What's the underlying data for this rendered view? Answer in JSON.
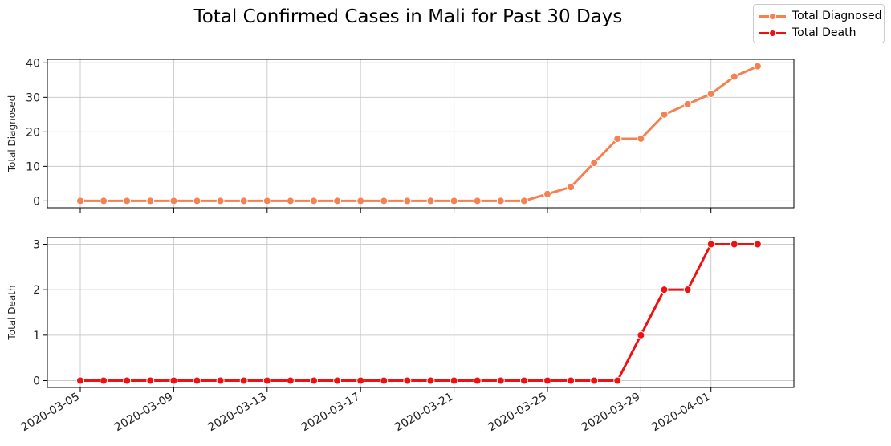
{
  "title": "Total Confirmed Cases in Mali for Past 30 Days",
  "legend": {
    "items": [
      {
        "label": "Total Diagnosed",
        "color": "#f4814f"
      },
      {
        "label": "Total Death",
        "color": "#ee1111"
      }
    ]
  },
  "chart_data": [
    {
      "type": "line",
      "ylabel": "Total Diagnosed",
      "xlabel": "",
      "color": "#f4814f",
      "ylim": [
        -2,
        41
      ],
      "yticks": [
        0,
        10,
        20,
        30,
        40
      ],
      "grid": true,
      "x": [
        "2020-03-05",
        "2020-03-06",
        "2020-03-07",
        "2020-03-08",
        "2020-03-09",
        "2020-03-10",
        "2020-03-11",
        "2020-03-12",
        "2020-03-13",
        "2020-03-14",
        "2020-03-15",
        "2020-03-16",
        "2020-03-17",
        "2020-03-18",
        "2020-03-19",
        "2020-03-20",
        "2020-03-21",
        "2020-03-22",
        "2020-03-23",
        "2020-03-24",
        "2020-03-25",
        "2020-03-26",
        "2020-03-27",
        "2020-03-28",
        "2020-03-29",
        "2020-03-30",
        "2020-03-31",
        "2020-04-01",
        "2020-04-02",
        "2020-04-03"
      ],
      "series": [
        {
          "name": "Total Diagnosed",
          "values": [
            0,
            0,
            0,
            0,
            0,
            0,
            0,
            0,
            0,
            0,
            0,
            0,
            0,
            0,
            0,
            0,
            0,
            0,
            0,
            0,
            2,
            4,
            11,
            18,
            18,
            25,
            28,
            31,
            36,
            39
          ]
        }
      ]
    },
    {
      "type": "line",
      "ylabel": "Total Death",
      "xlabel": "",
      "color": "#ee1111",
      "ylim": [
        -0.15,
        3.15
      ],
      "yticks": [
        0,
        1,
        2,
        3
      ],
      "grid": true,
      "x": [
        "2020-03-05",
        "2020-03-06",
        "2020-03-07",
        "2020-03-08",
        "2020-03-09",
        "2020-03-10",
        "2020-03-11",
        "2020-03-12",
        "2020-03-13",
        "2020-03-14",
        "2020-03-15",
        "2020-03-16",
        "2020-03-17",
        "2020-03-18",
        "2020-03-19",
        "2020-03-20",
        "2020-03-21",
        "2020-03-22",
        "2020-03-23",
        "2020-03-24",
        "2020-03-25",
        "2020-03-26",
        "2020-03-27",
        "2020-03-28",
        "2020-03-29",
        "2020-03-30",
        "2020-03-31",
        "2020-04-01",
        "2020-04-02",
        "2020-04-03"
      ],
      "series": [
        {
          "name": "Total Death",
          "values": [
            0,
            0,
            0,
            0,
            0,
            0,
            0,
            0,
            0,
            0,
            0,
            0,
            0,
            0,
            0,
            0,
            0,
            0,
            0,
            0,
            0,
            0,
            0,
            0,
            1,
            2,
            2,
            3,
            3,
            3
          ]
        }
      ]
    }
  ],
  "xticks": [
    "2020-03-05",
    "2020-03-09",
    "2020-03-13",
    "2020-03-17",
    "2020-03-21",
    "2020-03-25",
    "2020-03-29",
    "2020-04-01"
  ]
}
